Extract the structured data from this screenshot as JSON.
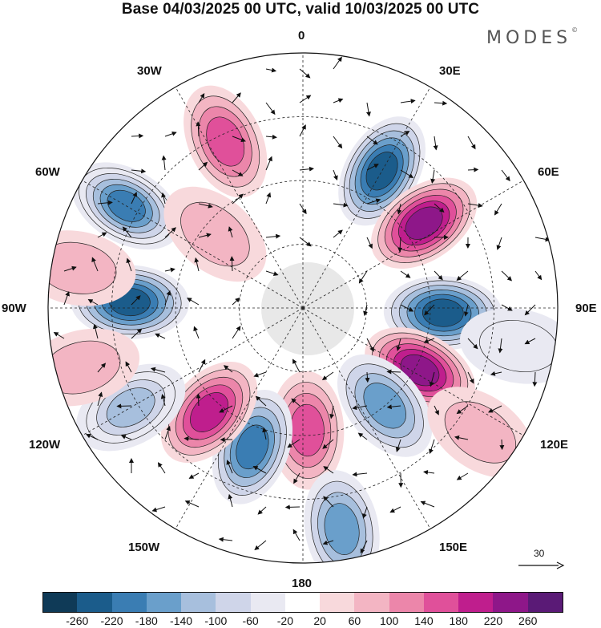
{
  "title": "Base 04/03/2025 00 UTC, valid 10/03/2025 00 UTC",
  "logo": {
    "text": "MODES",
    "mark": "©"
  },
  "longitude_labels": {
    "lon_0": "0",
    "lon_30e": "30E",
    "lon_60e": "60E",
    "lon_90e": "90E",
    "lon_120e": "120E",
    "lon_150e": "150E",
    "lon_180": "180",
    "lon_150w": "150W",
    "lon_120w": "120W",
    "lon_90w": "90W",
    "lon_60w": "60W",
    "lon_30w": "30W"
  },
  "colorbar": {
    "ticks": [
      "-260",
      "-220",
      "-180",
      "-140",
      "-100",
      "-60",
      "-20",
      "20",
      "60",
      "100",
      "140",
      "180",
      "220",
      "260"
    ],
    "colors": [
      "#0f3a57",
      "#1b5c8b",
      "#3a7db3",
      "#6a9fcb",
      "#a7bfdd",
      "#cfd5e9",
      "#e9e9f2",
      "#ffffff",
      "#f8d9dc",
      "#f3b5c3",
      "#ec86aa",
      "#e0509a",
      "#bf1e8d",
      "#8e1789",
      "#5a1a76"
    ]
  },
  "wind_scale": {
    "label": "30"
  },
  "anomalies": [
    {
      "lon": 30,
      "r": 0.62,
      "value": -240
    },
    {
      "lon": 55,
      "r": 0.58,
      "value": 250
    },
    {
      "lon": 92,
      "r": 0.55,
      "value": -230
    },
    {
      "lon": 118,
      "r": 0.52,
      "value": 220
    },
    {
      "lon": 140,
      "r": 0.5,
      "value": -160
    },
    {
      "lon": 178,
      "r": 0.48,
      "value": 150
    },
    {
      "lon": 200,
      "r": 0.58,
      "value": -200
    },
    {
      "lon": 222,
      "r": 0.55,
      "value": 200
    },
    {
      "lon": 240,
      "r": 0.78,
      "value": -140
    },
    {
      "lon": 272,
      "r": 0.68,
      "value": -240
    },
    {
      "lon": 300,
      "r": 0.8,
      "value": -220
    },
    {
      "lon": 335,
      "r": 0.72,
      "value": 150
    },
    {
      "lon": 170,
      "r": 0.88,
      "value": -160
    },
    {
      "lon": 125,
      "r": 0.85,
      "value": 60
    },
    {
      "lon": 100,
      "r": 0.86,
      "value": -60
    },
    {
      "lon": 280,
      "r": 0.9,
      "value": 60
    },
    {
      "lon": 310,
      "r": 0.45,
      "value": 80
    },
    {
      "lon": 255,
      "r": 0.9,
      "value": 80
    }
  ]
}
